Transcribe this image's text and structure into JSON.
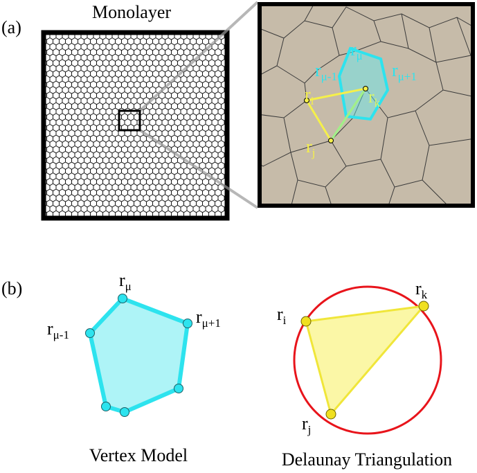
{
  "panel_a": {
    "label": "(a)",
    "title": "Monolayer",
    "zoom_labels": {
      "r_mu": {
        "base": "r",
        "sub": "μ"
      },
      "r_mu_minus": {
        "base": "r",
        "sub": "μ-1"
      },
      "r_mu_plus": {
        "base": "r",
        "sub": "μ+1"
      },
      "r_i": {
        "base": "r",
        "sub": "i"
      },
      "r_j": {
        "base": "r",
        "sub": "j"
      },
      "r_k": {
        "base": "r",
        "sub": "k"
      }
    }
  },
  "panel_b": {
    "label": "(b)",
    "vertex_model": {
      "caption": "Vertex Model",
      "r_mu": {
        "base": "r",
        "sub": "μ"
      },
      "r_mu_minus": {
        "base": "r",
        "sub": "μ-1"
      },
      "r_mu_plus": {
        "base": "r",
        "sub": "μ+1"
      }
    },
    "delaunay": {
      "caption": "Delaunay Triangulation",
      "r_i": {
        "base": "r",
        "sub": "i"
      },
      "r_j": {
        "base": "r",
        "sub": "j"
      },
      "r_k": {
        "base": "r",
        "sub": "k"
      }
    }
  }
}
